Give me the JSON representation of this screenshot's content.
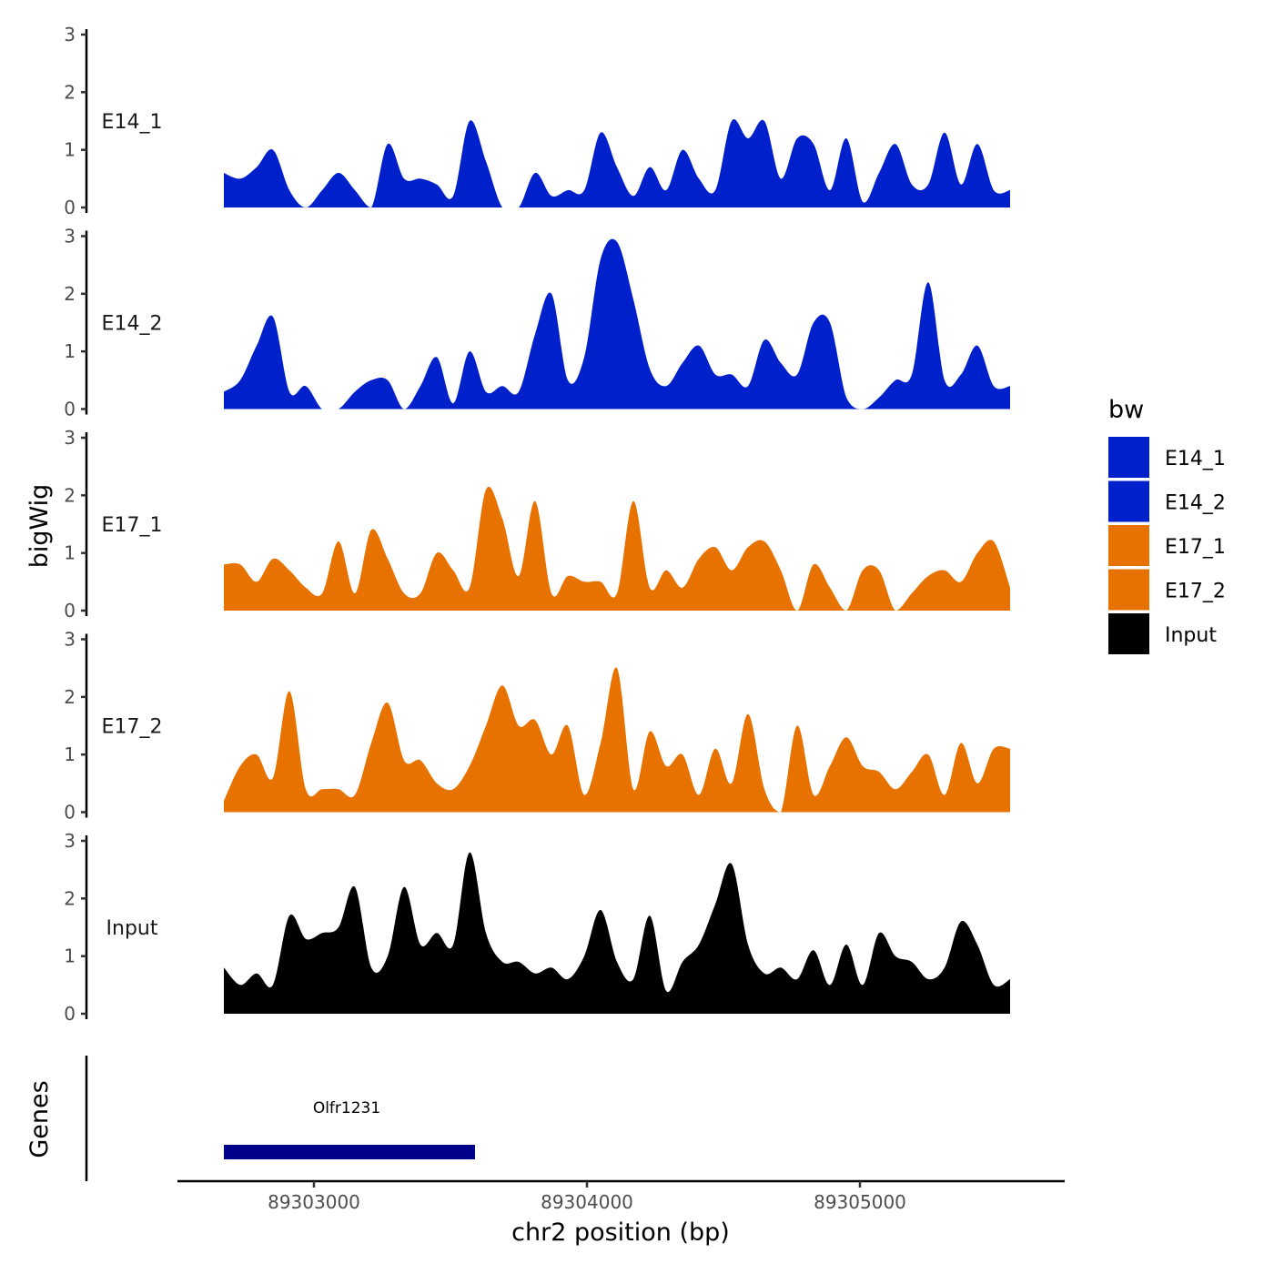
{
  "chart_data": {
    "type": "area",
    "title": "",
    "xlabel": "chr2 position (bp)",
    "ylabel": "bigWig",
    "genes_label": "Genes",
    "xlim": [
      89302500,
      89305750
    ],
    "ylim": [
      0,
      3
    ],
    "x_ticks": [
      89303000,
      89304000,
      89305000
    ],
    "x_tick_labels": [
      "89303000",
      "89304000",
      "89305000"
    ],
    "y_ticks": [
      0,
      1,
      2,
      3
    ],
    "y_tick_labels": [
      "0",
      "1",
      "2",
      "3"
    ],
    "x": [
      89302670,
      89302730,
      89302790,
      89302850,
      89302910,
      89302970,
      89303030,
      89303090,
      89303150,
      89303210,
      89303270,
      89303330,
      89303390,
      89303450,
      89303510,
      89303570,
      89303630,
      89303690,
      89303750,
      89303810,
      89303870,
      89303930,
      89303990,
      89304050,
      89304110,
      89304170,
      89304230,
      89304290,
      89304350,
      89304410,
      89304470,
      89304530,
      89304590,
      89304650,
      89304710,
      89304770,
      89304830,
      89304890,
      89304950,
      89305010,
      89305070,
      89305130,
      89305190,
      89305250,
      89305310,
      89305370,
      89305430,
      89305490,
      89305550
    ],
    "series": [
      {
        "name": "E14_1",
        "color": "#0020cc",
        "values": [
          0.6,
          0.5,
          0.7,
          1.0,
          0.3,
          0.0,
          0.3,
          0.6,
          0.3,
          0.0,
          1.1,
          0.5,
          0.5,
          0.4,
          0.2,
          1.5,
          0.8,
          0.0,
          0.0,
          0.6,
          0.2,
          0.3,
          0.3,
          1.3,
          0.7,
          0.2,
          0.7,
          0.3,
          1.0,
          0.5,
          0.3,
          1.5,
          1.2,
          1.5,
          0.5,
          1.2,
          1.1,
          0.3,
          1.2,
          0.1,
          0.6,
          1.1,
          0.4,
          0.4,
          1.3,
          0.4,
          1.1,
          0.3,
          0.3
        ]
      },
      {
        "name": "E14_2",
        "color": "#0020cc",
        "values": [
          0.3,
          0.5,
          1.1,
          1.6,
          0.3,
          0.4,
          0.0,
          0.0,
          0.3,
          0.5,
          0.5,
          0.0,
          0.4,
          0.9,
          0.1,
          1.0,
          0.3,
          0.4,
          0.3,
          1.3,
          2.0,
          0.5,
          0.9,
          2.6,
          2.9,
          1.9,
          0.7,
          0.4,
          0.8,
          1.1,
          0.6,
          0.6,
          0.4,
          1.2,
          0.8,
          0.6,
          1.5,
          1.5,
          0.2,
          0.0,
          0.2,
          0.5,
          0.6,
          2.2,
          0.5,
          0.6,
          1.1,
          0.4,
          0.4
        ]
      },
      {
        "name": "E17_1",
        "color": "#e87200",
        "values": [
          0.8,
          0.8,
          0.5,
          0.9,
          0.7,
          0.4,
          0.3,
          1.2,
          0.3,
          1.4,
          0.9,
          0.3,
          0.3,
          1.0,
          0.7,
          0.4,
          2.1,
          1.6,
          0.6,
          1.9,
          0.3,
          0.6,
          0.5,
          0.5,
          0.3,
          1.9,
          0.4,
          0.7,
          0.4,
          0.9,
          1.1,
          0.7,
          1.1,
          1.2,
          0.7,
          0.0,
          0.8,
          0.4,
          0.0,
          0.7,
          0.7,
          0.0,
          0.3,
          0.6,
          0.7,
          0.5,
          1.0,
          1.2,
          0.4
        ]
      },
      {
        "name": "E17_2",
        "color": "#e87200",
        "values": [
          0.2,
          0.8,
          1.0,
          0.6,
          2.1,
          0.4,
          0.4,
          0.4,
          0.3,
          1.2,
          1.9,
          0.9,
          0.9,
          0.5,
          0.4,
          0.8,
          1.5,
          2.2,
          1.5,
          1.6,
          1.0,
          1.5,
          0.3,
          1.2,
          2.5,
          0.4,
          1.4,
          0.8,
          1.0,
          0.3,
          1.1,
          0.5,
          1.7,
          0.4,
          0.0,
          1.5,
          0.3,
          0.8,
          1.3,
          0.8,
          0.7,
          0.4,
          0.7,
          1.0,
          0.3,
          1.2,
          0.5,
          1.1,
          1.1
        ]
      },
      {
        "name": "Input",
        "color": "#000000",
        "values": [
          0.8,
          0.5,
          0.7,
          0.5,
          1.7,
          1.3,
          1.4,
          1.5,
          2.2,
          0.8,
          1.0,
          2.2,
          1.2,
          1.4,
          1.2,
          2.8,
          1.4,
          0.9,
          0.9,
          0.7,
          0.8,
          0.6,
          1.0,
          1.8,
          0.9,
          0.6,
          1.7,
          0.4,
          0.9,
          1.2,
          1.9,
          2.6,
          1.2,
          0.7,
          0.8,
          0.6,
          1.1,
          0.5,
          1.2,
          0.5,
          1.4,
          1.0,
          0.9,
          0.6,
          0.8,
          1.6,
          1.2,
          0.5,
          0.6
        ]
      }
    ],
    "legend_title": "bw",
    "legend": [
      {
        "label": "E14_1",
        "color": "#0020cc"
      },
      {
        "label": "E14_2",
        "color": "#0020cc"
      },
      {
        "label": "E17_1",
        "color": "#e87200"
      },
      {
        "label": "E17_2",
        "color": "#e87200"
      },
      {
        "label": "Input",
        "color": "#000000"
      }
    ],
    "legend_position": "right",
    "grid": false,
    "genes": [
      {
        "name": "Olfr1231",
        "start": 89302670,
        "end": 89303590,
        "color": "#00008b"
      }
    ]
  }
}
